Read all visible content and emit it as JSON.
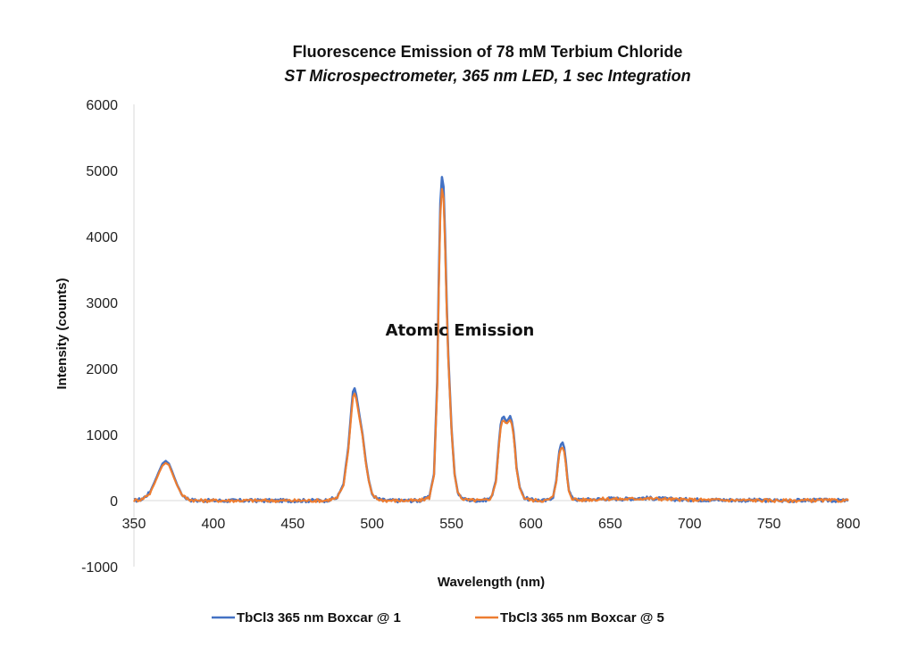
{
  "chart_data": {
    "type": "line",
    "title": "Fluorescence Emission of 78 mM Terbium Chloride",
    "subtitle": "ST Microspectrometer, 365 nm LED, 1 sec Integration",
    "xlabel": "Wavelength (nm)",
    "ylabel": "Intensity (counts)",
    "xlim": [
      350,
      800
    ],
    "ylim": [
      -1000,
      6000
    ],
    "x_ticks": [
      "350",
      "400",
      "450",
      "500",
      "550",
      "600",
      "650",
      "700",
      "750",
      "800"
    ],
    "y_ticks": [
      "-1000",
      "0",
      "1000",
      "2000",
      "3000",
      "4000",
      "5000",
      "6000"
    ],
    "grid": false,
    "legend_position": "bottom",
    "annotation": "Atomic Emission",
    "series": [
      {
        "name": "TbCl3 365 nm Boxcar @ 1",
        "color": "#4472C4",
        "x": [
          350,
          355,
          360,
          363,
          366,
          368,
          370,
          372,
          374,
          377,
          380,
          383,
          386,
          390,
          400,
          420,
          440,
          460,
          470,
          478,
          482,
          485,
          487,
          488,
          489,
          490,
          491,
          492,
          493,
          494,
          496,
          498,
          500,
          503,
          506,
          510,
          520,
          530,
          536,
          539,
          541,
          542,
          543,
          544,
          545,
          546,
          547,
          548,
          550,
          552,
          554,
          557,
          560,
          570,
          575,
          578,
          580,
          581,
          582,
          583,
          584,
          585,
          586,
          587,
          588,
          589,
          590,
          591,
          593,
          596,
          600,
          610,
          614,
          616,
          617,
          618,
          619,
          620,
          621,
          622,
          623,
          624,
          626,
          630,
          640,
          650,
          660,
          670,
          680,
          690,
          700,
          720,
          740,
          760,
          780,
          800
        ],
        "y": [
          0,
          20,
          120,
          280,
          450,
          560,
          600,
          560,
          440,
          250,
          100,
          40,
          10,
          0,
          0,
          0,
          0,
          0,
          0,
          40,
          250,
          800,
          1400,
          1650,
          1700,
          1600,
          1450,
          1300,
          1150,
          1000,
          600,
          300,
          100,
          30,
          10,
          0,
          0,
          0,
          50,
          400,
          1800,
          3300,
          4500,
          4900,
          4750,
          4000,
          3000,
          2200,
          1100,
          400,
          120,
          30,
          10,
          0,
          40,
          300,
          900,
          1150,
          1250,
          1270,
          1220,
          1200,
          1240,
          1280,
          1200,
          1050,
          800,
          500,
          200,
          40,
          10,
          0,
          60,
          300,
          550,
          750,
          850,
          880,
          800,
          600,
          350,
          150,
          40,
          10,
          20,
          30,
          25,
          40,
          30,
          20,
          15,
          10,
          5,
          0,
          5,
          0
        ]
      },
      {
        "name": "TbCl3 365 nm Boxcar @ 5",
        "color": "#ED7D31",
        "x": [
          350,
          355,
          360,
          363,
          366,
          368,
          370,
          372,
          374,
          377,
          380,
          383,
          386,
          390,
          400,
          420,
          440,
          460,
          470,
          478,
          482,
          485,
          487,
          488,
          489,
          490,
          491,
          492,
          493,
          494,
          496,
          498,
          500,
          503,
          506,
          510,
          520,
          530,
          536,
          539,
          541,
          542,
          543,
          544,
          545,
          546,
          547,
          548,
          550,
          552,
          554,
          557,
          560,
          570,
          575,
          578,
          580,
          581,
          582,
          583,
          584,
          585,
          586,
          587,
          588,
          589,
          590,
          591,
          593,
          596,
          600,
          610,
          614,
          616,
          617,
          618,
          619,
          620,
          621,
          622,
          623,
          624,
          626,
          630,
          640,
          650,
          660,
          670,
          680,
          690,
          700,
          720,
          740,
          760,
          780,
          800
        ],
        "y": [
          0,
          20,
          110,
          260,
          430,
          530,
          570,
          540,
          420,
          240,
          95,
          35,
          10,
          0,
          0,
          0,
          0,
          0,
          0,
          35,
          230,
          760,
          1330,
          1570,
          1620,
          1540,
          1400,
          1260,
          1120,
          980,
          580,
          290,
          95,
          28,
          8,
          0,
          0,
          0,
          45,
          380,
          1720,
          3150,
          4320,
          4720,
          4580,
          3880,
          2920,
          2150,
          1080,
          390,
          115,
          28,
          8,
          0,
          35,
          280,
          860,
          1100,
          1200,
          1210,
          1180,
          1170,
          1200,
          1220,
          1160,
          1010,
          770,
          480,
          190,
          38,
          8,
          0,
          55,
          280,
          520,
          710,
          790,
          800,
          740,
          560,
          330,
          140,
          36,
          8,
          18,
          26,
          22,
          34,
          26,
          18,
          12,
          8,
          4,
          0,
          4,
          0
        ]
      }
    ]
  }
}
